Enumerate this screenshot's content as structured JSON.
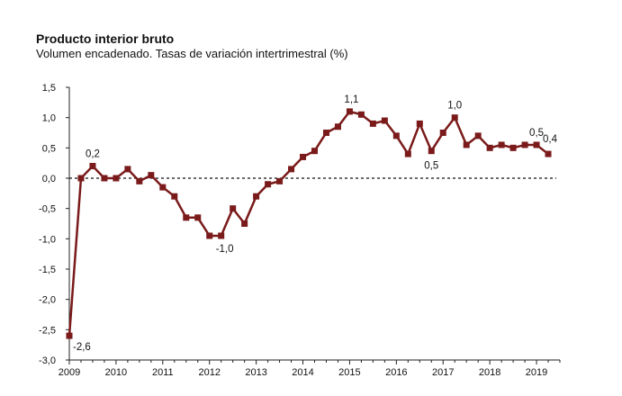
{
  "chart_data": {
    "type": "line",
    "title": "Producto interior bruto",
    "subtitle": "Volumen encadenado. Tasas de variación intertrimestral (%)",
    "xlabel": "",
    "ylabel": "",
    "ylim": [
      -3.0,
      1.5
    ],
    "xlim": [
      2009.0,
      2019.5
    ],
    "y_ticks": [
      "1,5",
      "1,0",
      "0,5",
      "0,0",
      "-0,5",
      "-1,0",
      "-1,5",
      "-2,0",
      "-2,5",
      "-3,0"
    ],
    "x_ticks": [
      "2009",
      "2010",
      "2011",
      "2012",
      "2013",
      "2014",
      "2015",
      "2016",
      "2017",
      "2018",
      "2019"
    ],
    "reference_line": 0,
    "grid": false,
    "legend": "none",
    "series": [
      {
        "color": "#7a1a1a",
        "x": [
          "2009 T1",
          "2009 T2",
          "2009 T3",
          "2009 T4",
          "2010 T1",
          "2010 T2",
          "2010 T3",
          "2010 T4",
          "2011 T1",
          "2011 T2",
          "2011 T3",
          "2011 T4",
          "2012 T1",
          "2012 T2",
          "2012 T3",
          "2012 T4",
          "2013 T1",
          "2013 T2",
          "2013 T3",
          "2013 T4",
          "2014 T1",
          "2014 T2",
          "2014 T3",
          "2014 T4",
          "2015 T1",
          "2015 T2",
          "2015 T3",
          "2015 T4",
          "2016 T1",
          "2016 T2",
          "2016 T3",
          "2016 T4",
          "2017 T1",
          "2017 T2",
          "2017 T3",
          "2017 T4",
          "2018 T1",
          "2018 T2",
          "2018 T3",
          "2018 T4",
          "2019 T1",
          "2019 T2"
        ],
        "values": [
          -2.6,
          0.0,
          0.2,
          0.0,
          0.0,
          0.15,
          -0.05,
          0.05,
          -0.15,
          -0.3,
          -0.65,
          -0.65,
          -0.95,
          -0.95,
          -0.5,
          -0.75,
          -0.3,
          -0.1,
          -0.05,
          0.15,
          0.35,
          0.45,
          0.75,
          0.85,
          1.1,
          1.05,
          0.9,
          0.95,
          0.7,
          0.4,
          0.9,
          0.45,
          0.75,
          1.0,
          0.55,
          0.7,
          0.5,
          0.55,
          0.5,
          0.55,
          0.55,
          0.4
        ]
      }
    ],
    "annotations": [
      {
        "text": "-2,6",
        "index": 0,
        "pos": "below-right"
      },
      {
        "text": "0,2",
        "index": 2,
        "pos": "above"
      },
      {
        "text": "-1,0",
        "index": 13,
        "pos": "below-left"
      },
      {
        "text": "1,1",
        "index": 24,
        "pos": "above-left"
      },
      {
        "text": "0,5",
        "index": 31,
        "pos": "below"
      },
      {
        "text": "1,0",
        "index": 33,
        "pos": "above"
      },
      {
        "text": "0,5",
        "index": 40,
        "pos": "above"
      },
      {
        "text": "0,4",
        "index": 41,
        "pos": "above-right"
      }
    ]
  }
}
